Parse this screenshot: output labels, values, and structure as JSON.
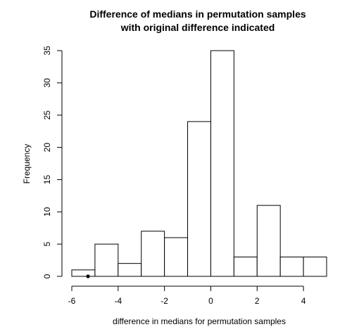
{
  "chart_data": {
    "type": "histogram",
    "title_lines": [
      "Difference of medians in permutation samples",
      "with original difference indicated"
    ],
    "xlabel": "difference in medians for permutation samples",
    "ylabel": "Frequency",
    "bins": [
      {
        "start": -6,
        "end": -5,
        "count": 1
      },
      {
        "start": -5,
        "end": -4,
        "count": 5
      },
      {
        "start": -4,
        "end": -3,
        "count": 2
      },
      {
        "start": -3,
        "end": -2,
        "count": 7
      },
      {
        "start": -2,
        "end": -1,
        "count": 6
      },
      {
        "start": -1,
        "end": 0,
        "count": 24
      },
      {
        "start": 0,
        "end": 1,
        "count": 35
      },
      {
        "start": 1,
        "end": 2,
        "count": 3
      },
      {
        "start": 2,
        "end": 3,
        "count": 11
      },
      {
        "start": 3,
        "end": 4,
        "count": 3
      },
      {
        "start": 4,
        "end": 5,
        "count": 3
      }
    ],
    "x_ticks": [
      -6,
      -4,
      -2,
      0,
      2,
      4
    ],
    "y_ticks": [
      0,
      5,
      10,
      15,
      20,
      25,
      30,
      35
    ],
    "xlim": [
      -6,
      5
    ],
    "ylim": [
      0,
      35
    ],
    "marker_point": {
      "x": -5.3,
      "y": 0
    },
    "grid": false,
    "bar_fill": "#ffffff",
    "bar_stroke": "#000000",
    "marker_color": "#000000"
  }
}
